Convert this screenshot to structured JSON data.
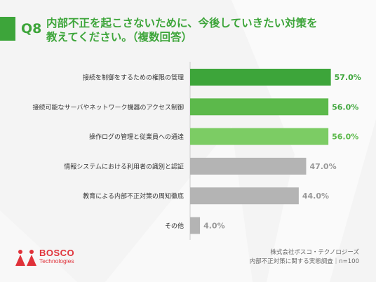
{
  "header": {
    "q_number": "Q8",
    "question_line1": "内部不正を起こさないために、今後していきたい対策を",
    "question_line2": "教えてください。（複数回答）"
  },
  "chart_data": {
    "type": "bar",
    "orientation": "horizontal",
    "categories": [
      "接続を制御をするための権限の管理",
      "接続可能なサーバやネットワーク機器のアクセス制御",
      "操作ログの管理と従業員への通達",
      "情報システムにおける利用者の識別と認証",
      "教育による内部不正対策の周知徹底",
      "その他"
    ],
    "values": [
      57.0,
      56.0,
      56.0,
      47.0,
      44.0,
      4.0
    ],
    "value_labels": [
      "57.0%",
      "56.0%",
      "56.0%",
      "47.0%",
      "44.0%",
      "4.0%"
    ],
    "bar_colors": [
      "#3da53a",
      "#5cb94b",
      "#7ccc64",
      "#b4b4b4",
      "#b4b4b4",
      "#b4b4b4"
    ],
    "label_colors": [
      "#3da53a",
      "#3da53a",
      "#5cb94b",
      "#999999",
      "#999999",
      "#999999"
    ],
    "xlim": [
      0,
      100
    ]
  },
  "footer": {
    "logo_word": "BOSCO",
    "logo_sub": "Technologies",
    "company": "株式会社ボスコ・テクノロジーズ",
    "survey": "内部不正対策に関する実態調査｜n=100"
  },
  "colors": {
    "accent": "#3da53a",
    "brand_red": "#e0323a"
  }
}
